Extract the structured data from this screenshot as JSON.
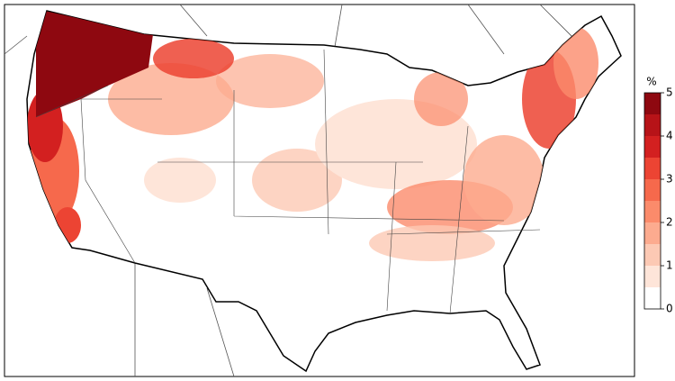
{
  "colorbar": {
    "label": "%",
    "range": [
      0,
      5
    ],
    "ticks": [
      0,
      1,
      2,
      3,
      4,
      5
    ],
    "bins": [
      0,
      0.5,
      1,
      1.5,
      2,
      2.5,
      3,
      3.5,
      4,
      4.5,
      5
    ],
    "colors": [
      "#ffffff",
      "#fee5d9",
      "#fcc9b4",
      "#fcab8f",
      "#fb8b6b",
      "#f6694c",
      "#ec4433",
      "#d32020",
      "#b71318",
      "#8e0810"
    ]
  }
}
